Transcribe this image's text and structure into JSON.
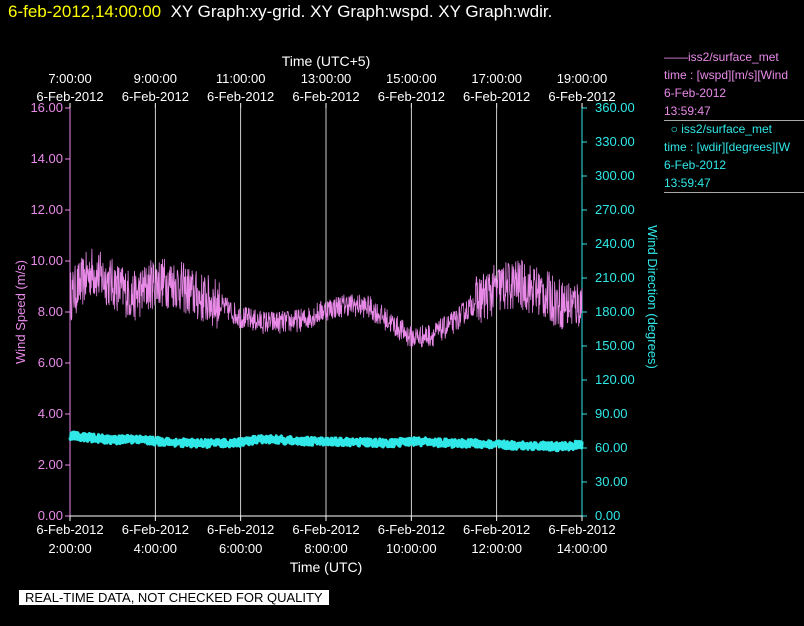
{
  "header": {
    "timestamp": "6-feb-2012,14:00:00",
    "title": "XY Graph:xy-grid.  XY Graph:wspd.  XY Graph:wdir."
  },
  "legend": [
    {
      "marker": "——",
      "name": "iss2/surface_met",
      "line2": "time : [wspd][m/s][Wind",
      "date": "6-Feb-2012",
      "time": "13:59:47"
    },
    {
      "marker": "○",
      "name": "iss2/surface_met",
      "line2": "time : [wdir][degrees][W",
      "date": "6-Feb-2012",
      "time": "13:59:47"
    }
  ],
  "footer": "REAL-TIME DATA, NOT CHECKED FOR QUALITY",
  "chart_data": {
    "type": "line",
    "top_axis_title": "Time (UTC+5)",
    "top_ticks": [
      {
        "time": "7:00:00",
        "date": "6-Feb-2012"
      },
      {
        "time": "9:00:00",
        "date": "6-Feb-2012"
      },
      {
        "time": "11:00:00",
        "date": "6-Feb-2012"
      },
      {
        "time": "13:00:00",
        "date": "6-Feb-2012"
      },
      {
        "time": "15:00:00",
        "date": "6-Feb-2012"
      },
      {
        "time": "17:00:00",
        "date": "6-Feb-2012"
      },
      {
        "time": "19:00:00",
        "date": "6-Feb-2012"
      }
    ],
    "xlabel": "Time (UTC)",
    "x_ticks": [
      {
        "date": "6-Feb-2012",
        "time": "2:00:00"
      },
      {
        "date": "6-Feb-2012",
        "time": "4:00:00"
      },
      {
        "date": "6-Feb-2012",
        "time": "6:00:00"
      },
      {
        "date": "6-Feb-2012",
        "time": "8:00:00"
      },
      {
        "date": "6-Feb-2012",
        "time": "10:00:00"
      },
      {
        "date": "6-Feb-2012",
        "time": "12:00:00"
      },
      {
        "date": "6-Feb-2012",
        "time": "14:00:00"
      }
    ],
    "xlim": [
      "2:00",
      "14:00"
    ],
    "ylabel_left": "Wind Speed (m/s)",
    "ylim_left": [
      0,
      16
    ],
    "y_ticks_left": [
      "0.00",
      "2.00",
      "4.00",
      "6.00",
      "8.00",
      "10.00",
      "12.00",
      "14.00",
      "16.00"
    ],
    "ylabel_right": "Wind Direction (degrees)",
    "ylim_right": [
      0,
      360
    ],
    "y_ticks_right": [
      "0.00",
      "30.00",
      "60.00",
      "90.00",
      "120.00",
      "150.00",
      "180.00",
      "210.00",
      "240.00",
      "270.00",
      "300.00",
      "330.00",
      "360.00"
    ],
    "grid": "vertical",
    "colors": {
      "wspd": "#e98ae9",
      "wdir": "#30e8e8",
      "grid": "#ffffff",
      "axis_left": "#e98ae9",
      "axis_right": "#30e8e8"
    },
    "series": [
      {
        "name": "iss2/surface_met",
        "quantity": "wspd",
        "axis": "left",
        "x_hours_utc": [
          2.0,
          2.5,
          3.0,
          3.5,
          4.0,
          4.5,
          5.0,
          5.5,
          6.0,
          6.5,
          7.0,
          7.5,
          8.0,
          8.5,
          9.0,
          9.5,
          10.0,
          10.5,
          11.0,
          11.5,
          12.0,
          12.5,
          13.0,
          13.5,
          14.0
        ],
        "values": [
          8.6,
          9.6,
          9.1,
          8.6,
          9.2,
          9.1,
          8.6,
          8.3,
          7.8,
          7.6,
          7.6,
          7.7,
          8.1,
          8.3,
          8.2,
          7.6,
          7.0,
          7.1,
          7.6,
          8.4,
          8.9,
          9.1,
          8.8,
          8.3,
          8.3
        ]
      },
      {
        "name": "iss2/surface_met",
        "quantity": "wdir",
        "axis": "right",
        "x_hours_utc": [
          2.0,
          2.5,
          3.0,
          3.5,
          4.0,
          4.5,
          5.0,
          5.5,
          6.0,
          6.5,
          7.0,
          7.5,
          8.0,
          8.5,
          9.0,
          9.5,
          10.0,
          10.5,
          11.0,
          11.5,
          12.0,
          12.5,
          13.0,
          13.5,
          14.0
        ],
        "values": [
          71,
          69,
          67,
          68,
          66,
          65,
          64,
          64,
          65,
          68,
          67,
          66,
          66,
          65,
          65,
          64,
          66,
          65,
          64,
          64,
          63,
          62,
          62,
          61,
          63
        ]
      }
    ]
  }
}
